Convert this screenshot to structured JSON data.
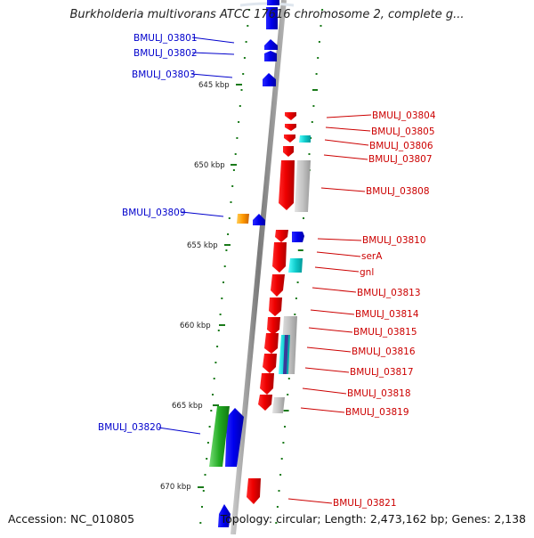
{
  "title": "Burkholderia multivorans ATCC 17616 chromosome 2, complete g...",
  "accession": "Accession: NC_010805",
  "topology": "Topology: circular; Length: 2,473,162 bp; Genes: 2,138",
  "colors": {
    "left_label": "#0000cc",
    "right_label": "#cc0000",
    "forward_gene": "#0000ee",
    "reverse_gene": "#ee0000",
    "tick": "#1a7a1a",
    "backbone": "#8a8a8a"
  },
  "scale_labels": [
    {
      "text": "645 kbp",
      "kbp": 645
    },
    {
      "text": "650 kbp",
      "kbp": 650
    },
    {
      "text": "655 kbp",
      "kbp": 655
    },
    {
      "text": "660 kbp",
      "kbp": 660
    },
    {
      "text": "665 kbp",
      "kbp": 665
    },
    {
      "text": "670 kbp",
      "kbp": 670
    }
  ],
  "left_genes": [
    {
      "label": "BMULJ_03801",
      "strand": "+"
    },
    {
      "label": "BMULJ_03802",
      "strand": "+"
    },
    {
      "label": "BMULJ_03803",
      "strand": "+"
    },
    {
      "label": "BMULJ_03809",
      "strand": "+"
    },
    {
      "label": "BMULJ_03820",
      "strand": "+"
    }
  ],
  "right_genes": [
    {
      "label": "BMULJ_03804",
      "strand": "-"
    },
    {
      "label": "BMULJ_03805",
      "strand": "-"
    },
    {
      "label": "BMULJ_03806",
      "strand": "-"
    },
    {
      "label": "BMULJ_03807",
      "strand": "-"
    },
    {
      "label": "BMULJ_03808",
      "strand": "-"
    },
    {
      "label": "BMULJ_03810",
      "strand": "+"
    },
    {
      "label": "serA",
      "strand": "-"
    },
    {
      "label": "gnl",
      "strand": "-"
    },
    {
      "label": "BMULJ_03813",
      "strand": "-"
    },
    {
      "label": "BMULJ_03814",
      "strand": "-"
    },
    {
      "label": "BMULJ_03815",
      "strand": "-"
    },
    {
      "label": "BMULJ_03816",
      "strand": "-"
    },
    {
      "label": "BMULJ_03817",
      "strand": "-"
    },
    {
      "label": "BMULJ_03818",
      "strand": "-"
    },
    {
      "label": "BMULJ_03819",
      "strand": "-"
    },
    {
      "label": "BMULJ_03821",
      "strand": "-"
    }
  ]
}
